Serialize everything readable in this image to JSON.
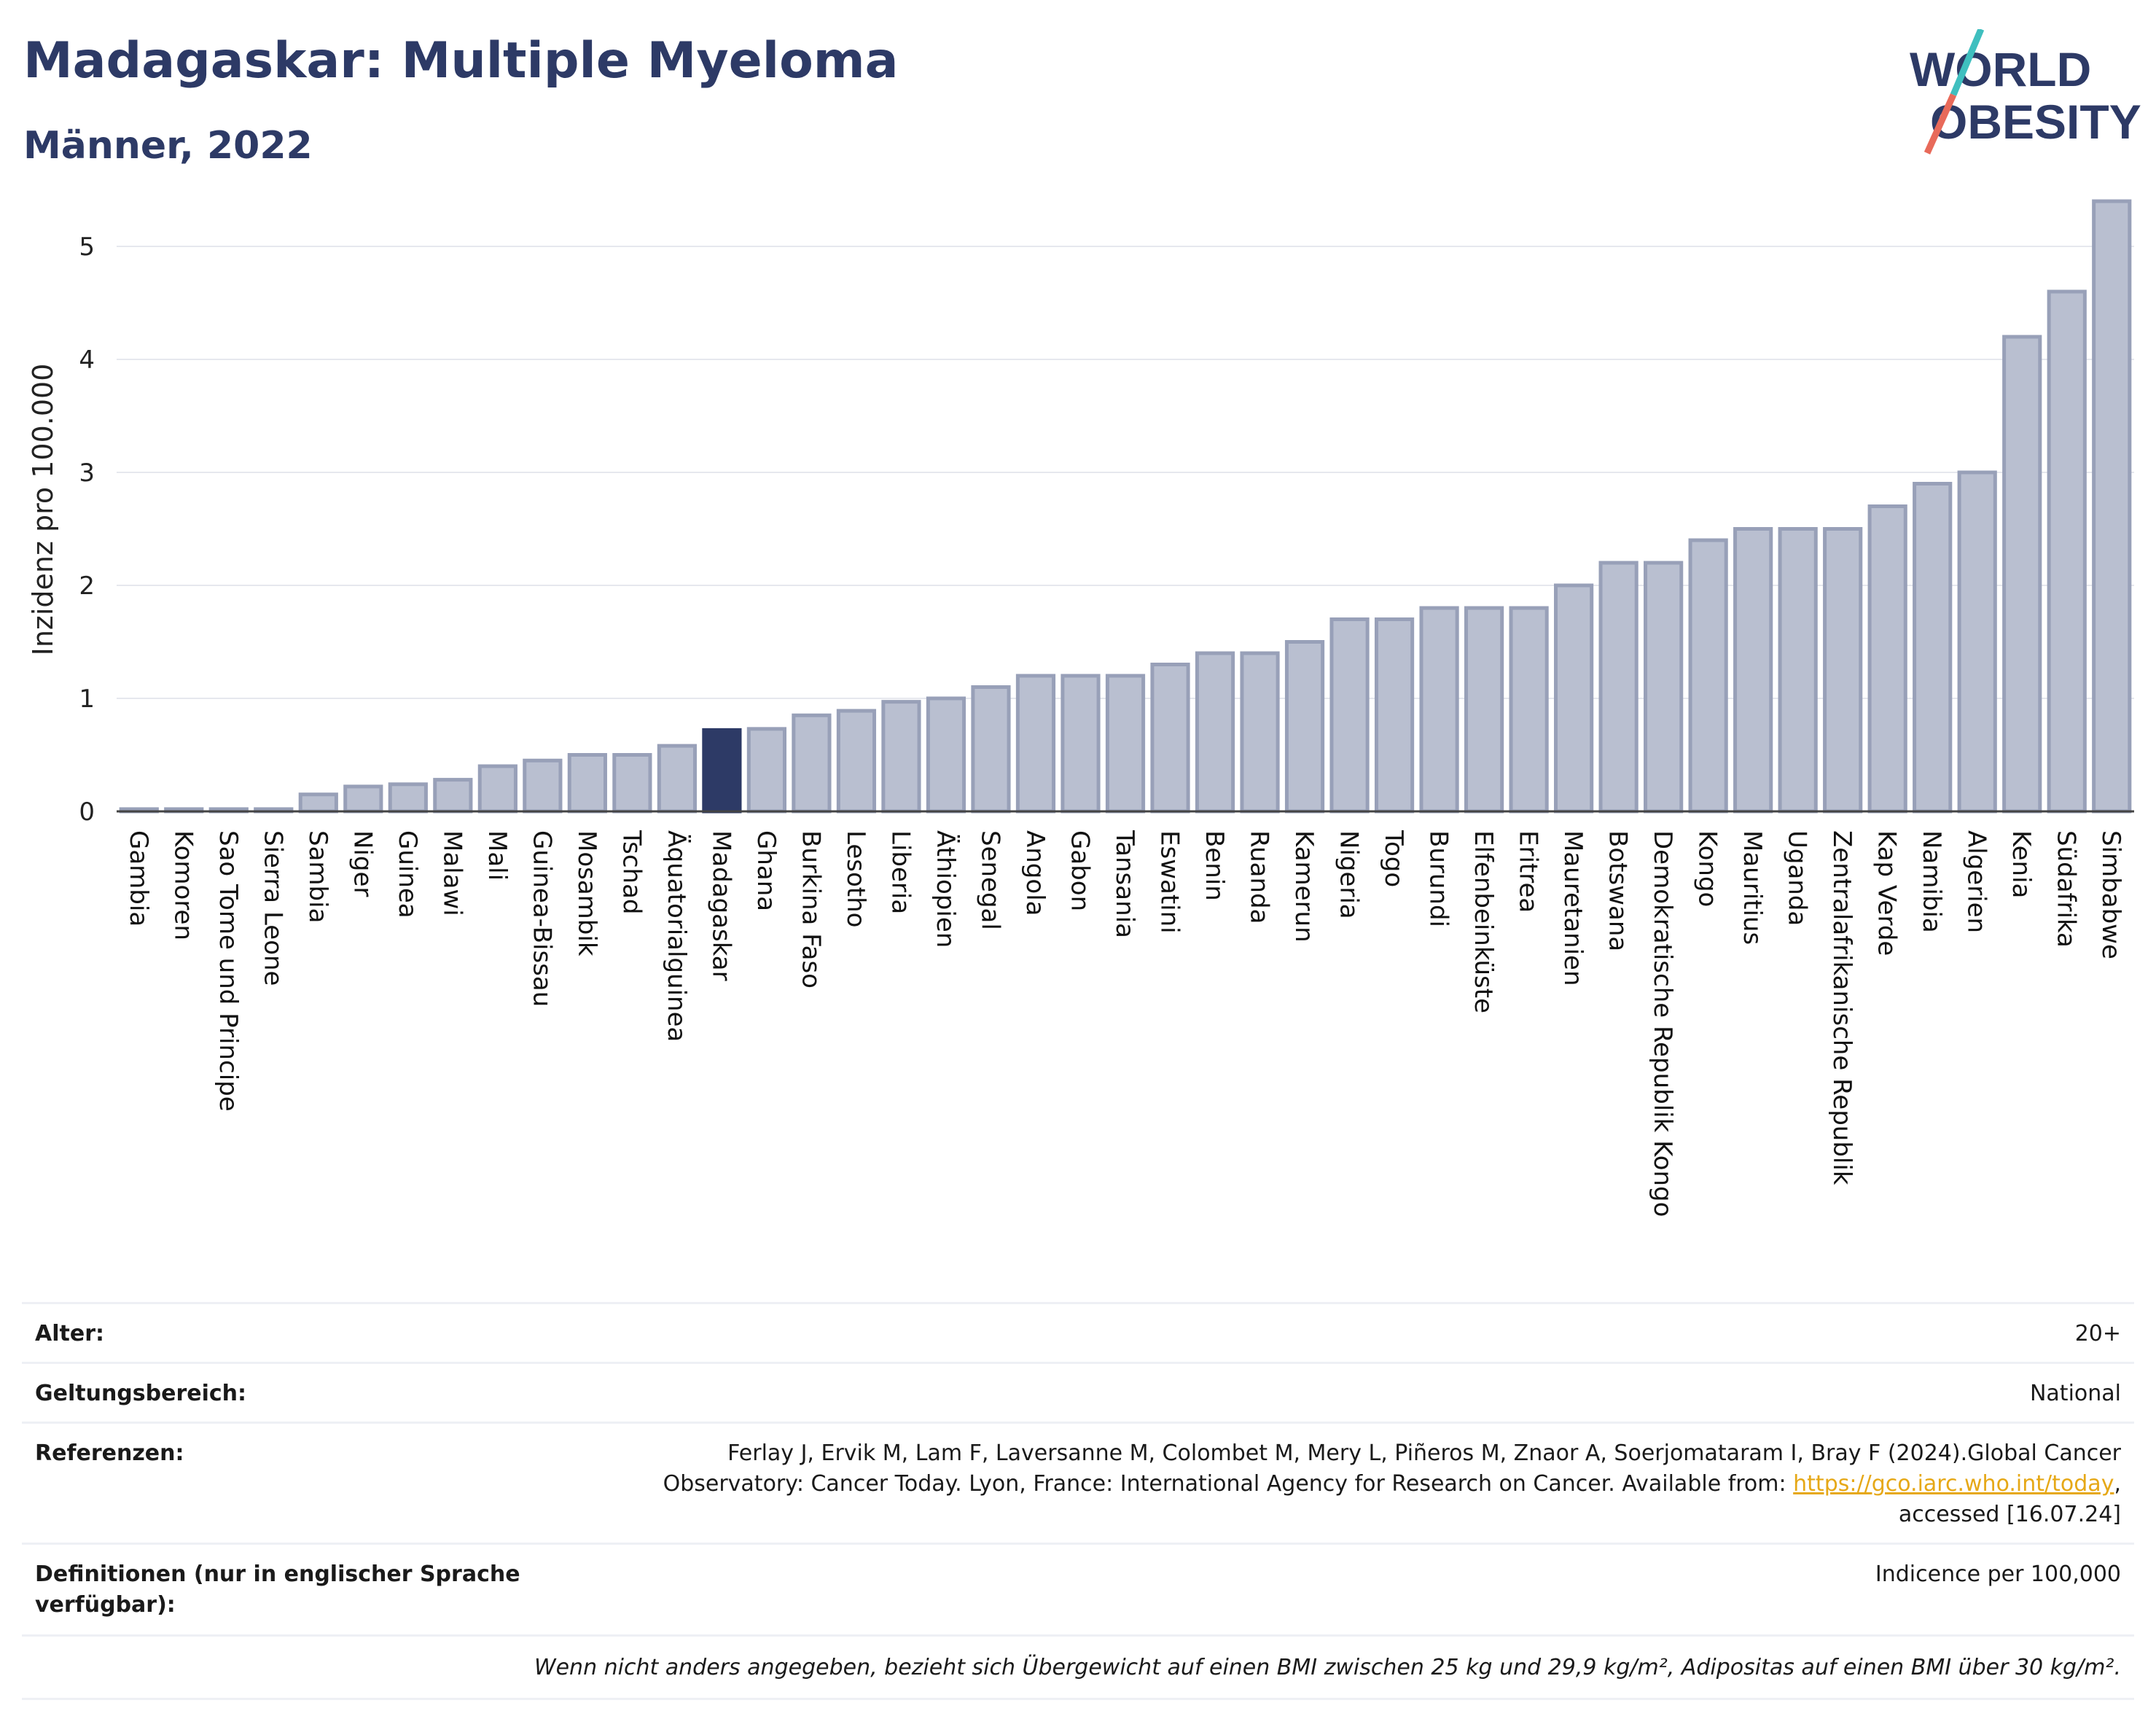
{
  "header": {
    "title": "Madagaskar: Multiple Myeloma",
    "subtitle": "Männer, 2022",
    "logo_line1": "WORLD",
    "logo_line2": "OBESITY"
  },
  "colors": {
    "title": "#2d3a66",
    "bar": "#b9bfd0",
    "bar_stroke": "#98a0b8",
    "highlight": "#2d3a66",
    "logo_teal": "#3fbfbf",
    "logo_coral": "#e86a5a",
    "link": "#e6a817"
  },
  "chart_data": {
    "type": "bar",
    "ylabel": "Inzidenz pro 100.000",
    "xlabel": "",
    "ylim": [
      0,
      5.6
    ],
    "yticks": [
      0,
      1,
      2,
      3,
      4,
      5
    ],
    "grid": true,
    "highlight": "Madagaskar",
    "categories": [
      "Gambia",
      "Komoren",
      "Sao Tome und Principe",
      "Sierra Leone",
      "Sambia",
      "Niger",
      "Guinea",
      "Malawi",
      "Mali",
      "Guinea-Bissau",
      "Mosambik",
      "Tschad",
      "Äquatorialguinea",
      "Madagaskar",
      "Ghana",
      "Burkina Faso",
      "Lesotho",
      "Liberia",
      "Äthiopien",
      "Senegal",
      "Angola",
      "Gabon",
      "Tansania",
      "Eswatini",
      "Benin",
      "Ruanda",
      "Kamerun",
      "Nigeria",
      "Togo",
      "Burundi",
      "Elfenbeinküste",
      "Eritrea",
      "Mauretanien",
      "Botswana",
      "Demokratische Republik Kongo",
      "Kongo",
      "Mauritius",
      "Uganda",
      "Zentralafrikanische Republik",
      "Kap Verde",
      "Namibia",
      "Algerien",
      "Kenia",
      "Südafrika",
      "Simbabwe"
    ],
    "values": [
      0.02,
      0.02,
      0.02,
      0.02,
      0.15,
      0.22,
      0.24,
      0.28,
      0.4,
      0.45,
      0.5,
      0.5,
      0.58,
      0.72,
      0.73,
      0.85,
      0.89,
      0.97,
      1.0,
      1.1,
      1.2,
      1.2,
      1.2,
      1.3,
      1.4,
      1.4,
      1.5,
      1.7,
      1.7,
      1.8,
      1.8,
      1.8,
      2.0,
      2.2,
      2.2,
      2.4,
      2.5,
      2.5,
      2.5,
      2.7,
      2.9,
      3.0,
      4.2,
      4.6,
      5.4
    ]
  },
  "info": {
    "age_label": "Alter:",
    "age_value": "20+",
    "scope_label": "Geltungsbereich:",
    "scope_value": "National",
    "ref_label": "Referenzen:",
    "ref_line1": "Ferlay J, Ervik M, Lam F, Laversanne M, Colombet M, Mery L, Piñeros M, Znaor A, Soerjomataram I, Bray F (2024).Global Cancer",
    "ref_line2": "Observatory: Cancer Today. Lyon, France: International Agency for Research on Cancer. Available from: ",
    "ref_link": "https://gco.iarc.who.int/today",
    "ref_line2_end": ",",
    "ref_line3": "accessed [16.07.24]",
    "def_label_line1": "Definitionen (nur in englischer Sprache",
    "def_label_line2": "verfügbar):",
    "def_value": "Indicence per 100,000",
    "note": "Wenn nicht anders angegeben, bezieht sich Übergewicht auf einen BMI zwischen 25 kg und 29,9 kg/m², Adipositas auf einen BMI über 30 kg/m²."
  }
}
